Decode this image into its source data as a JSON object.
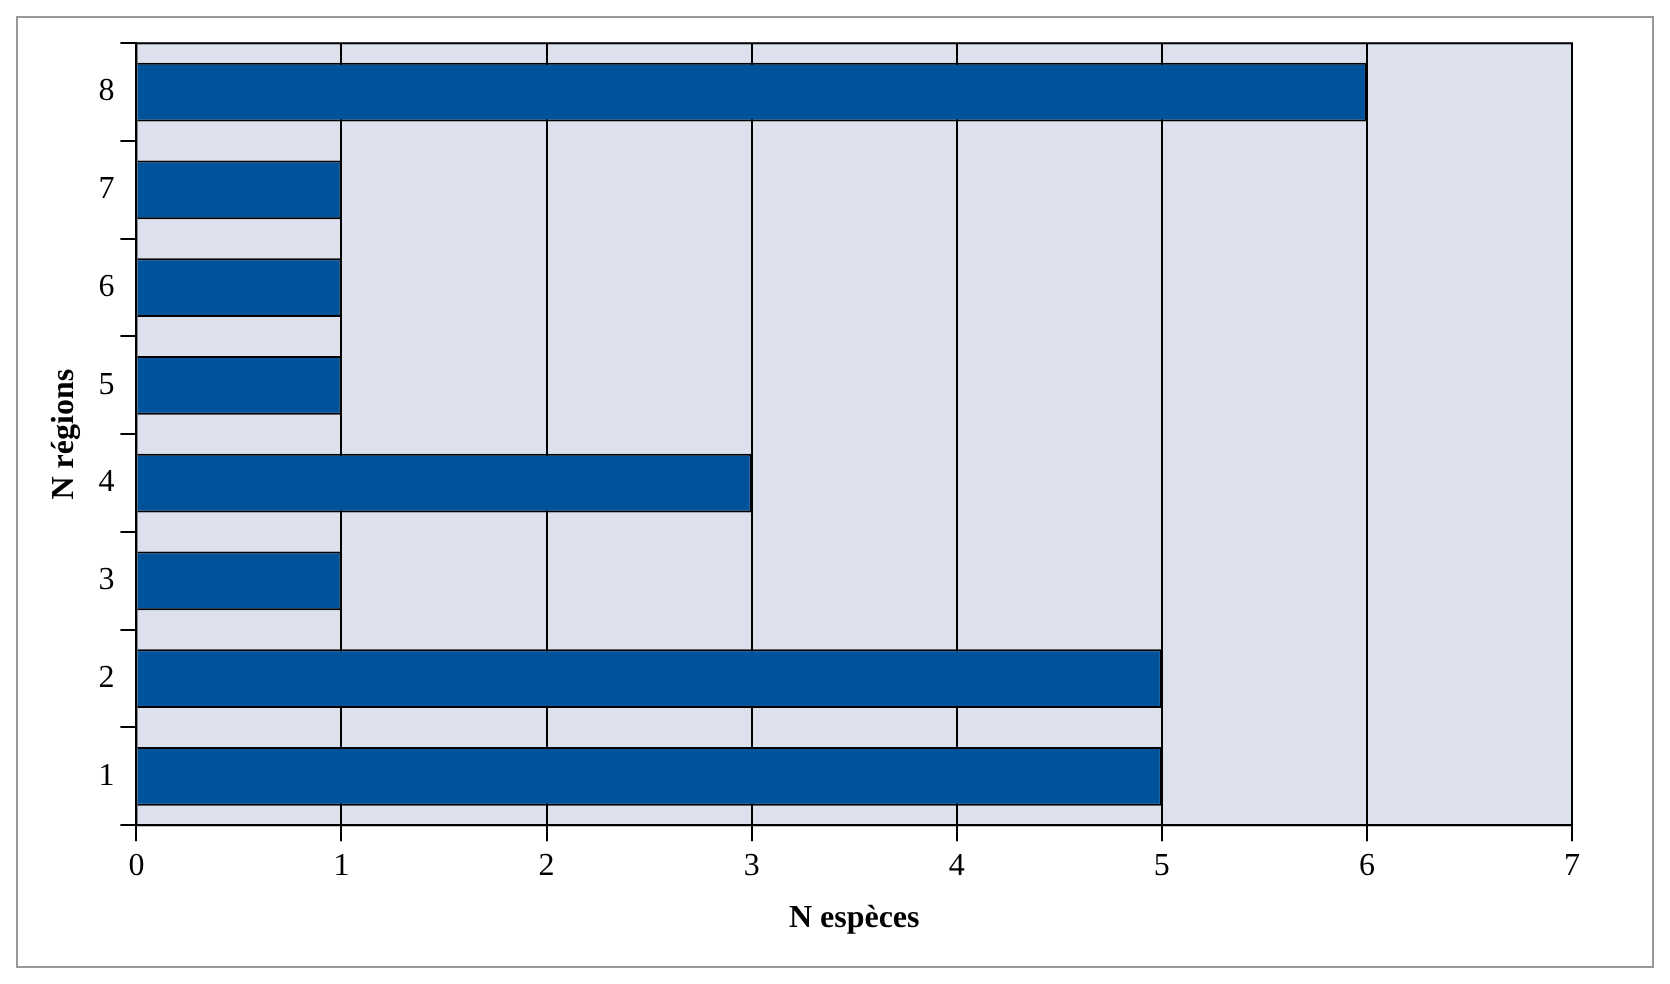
{
  "chart_data": {
    "type": "bar",
    "orientation": "horizontal",
    "xlabel": "N espèces",
    "ylabel": "N régions",
    "categories": [
      "8",
      "7",
      "6",
      "5",
      "4",
      "3",
      "2",
      "1"
    ],
    "values": [
      6,
      1,
      1,
      1,
      3,
      1,
      5,
      5
    ],
    "color": "#00529b",
    "xlim": [
      0,
      7
    ],
    "xticks": [
      0,
      1,
      2,
      3,
      4,
      5,
      6,
      7
    ],
    "grid": "x",
    "legend": false
  }
}
